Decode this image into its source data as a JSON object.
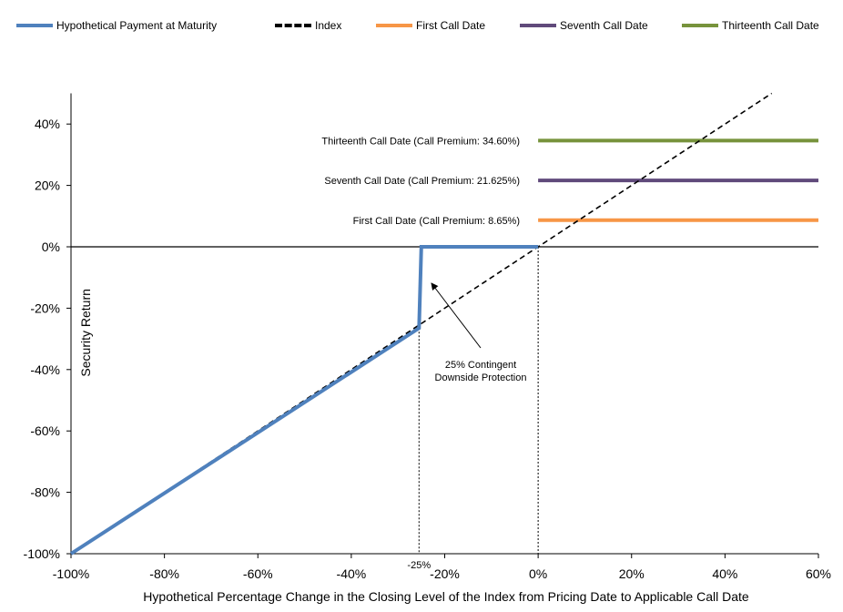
{
  "chart_data": {
    "type": "line",
    "xlabel": "Hypothetical Percentage Change in the Closing Level of the Index from Pricing Date to Applicable Call Date",
    "ylabel": "Security Return",
    "xlim": [
      -100,
      60
    ],
    "ylim": [
      -100,
      50
    ],
    "x_ticks": [
      -100,
      -80,
      -60,
      -40,
      -20,
      0,
      20,
      40,
      60
    ],
    "y_ticks": [
      -100,
      -80,
      -60,
      -40,
      -20,
      0,
      20,
      40
    ],
    "x_tick_labels": [
      "-100%",
      "-80%",
      "-60%",
      "-40%",
      "-20%",
      "0%",
      "20%",
      "40%",
      "60%"
    ],
    "y_tick_labels": [
      "-100%",
      "-80%",
      "-60%",
      "-40%",
      "-20%",
      "0%",
      "20%",
      "40%"
    ],
    "legend_position": "top",
    "series": [
      {
        "name": "Hypothetical Payment at Maturity",
        "color": "#4F81BD",
        "style": "solid",
        "points": [
          [
            -100,
            -100
          ],
          [
            -25.5,
            -26.5
          ],
          [
            -25,
            0
          ],
          [
            0,
            0
          ]
        ]
      },
      {
        "name": "Index",
        "color": "#000000",
        "style": "dashed",
        "points": [
          [
            -100,
            -100
          ],
          [
            50,
            50
          ]
        ]
      },
      {
        "name": "First Call Date",
        "color": "#F79646",
        "style": "solid",
        "points": [
          [
            0,
            8.65
          ],
          [
            60,
            8.65
          ]
        ]
      },
      {
        "name": "Seventh Call Date",
        "color": "#604A7B",
        "style": "solid",
        "points": [
          [
            0,
            21.625
          ],
          [
            60,
            21.625
          ]
        ]
      },
      {
        "name": "Thirteenth Call Date",
        "color": "#77933C",
        "style": "solid",
        "points": [
          [
            0,
            34.6
          ],
          [
            60,
            34.6
          ]
        ]
      }
    ],
    "annotations": {
      "thirteenth": "Thirteenth  Call Date (Call Premium: 34.60%)",
      "seventh": "Seventh  Call Date (Call Premium: 21.625%)",
      "first": "First Call Date (Call Premium: 8.65%)",
      "protection_line1": "25% Contingent",
      "protection_line2": "Downside Protection",
      "barrier_label": "-25%"
    }
  }
}
